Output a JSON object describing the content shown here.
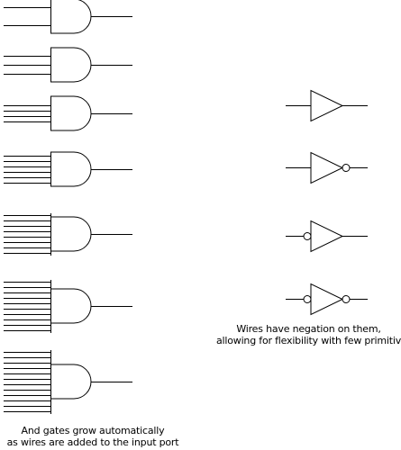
{
  "diagram": {
    "and_gates": [
      {
        "inputs": 2
      },
      {
        "inputs": 3
      },
      {
        "inputs": 4
      },
      {
        "inputs": 6
      },
      {
        "inputs": 8
      },
      {
        "inputs": 10
      },
      {
        "inputs": 12
      }
    ],
    "inverters": [
      {
        "input_negated": false,
        "output_negated": false
      },
      {
        "input_negated": false,
        "output_negated": true
      },
      {
        "input_negated": true,
        "output_negated": false
      },
      {
        "input_negated": true,
        "output_negated": true
      }
    ],
    "colors": {
      "stroke": "#000000",
      "background": "#ffffff"
    }
  },
  "captions": {
    "and_line1": "And gates grow automatically",
    "and_line2": "as wires are added to the input port",
    "neg_line1": "Wires have negation on them,",
    "neg_line2": "allowing for flexibility with few primitives"
  }
}
